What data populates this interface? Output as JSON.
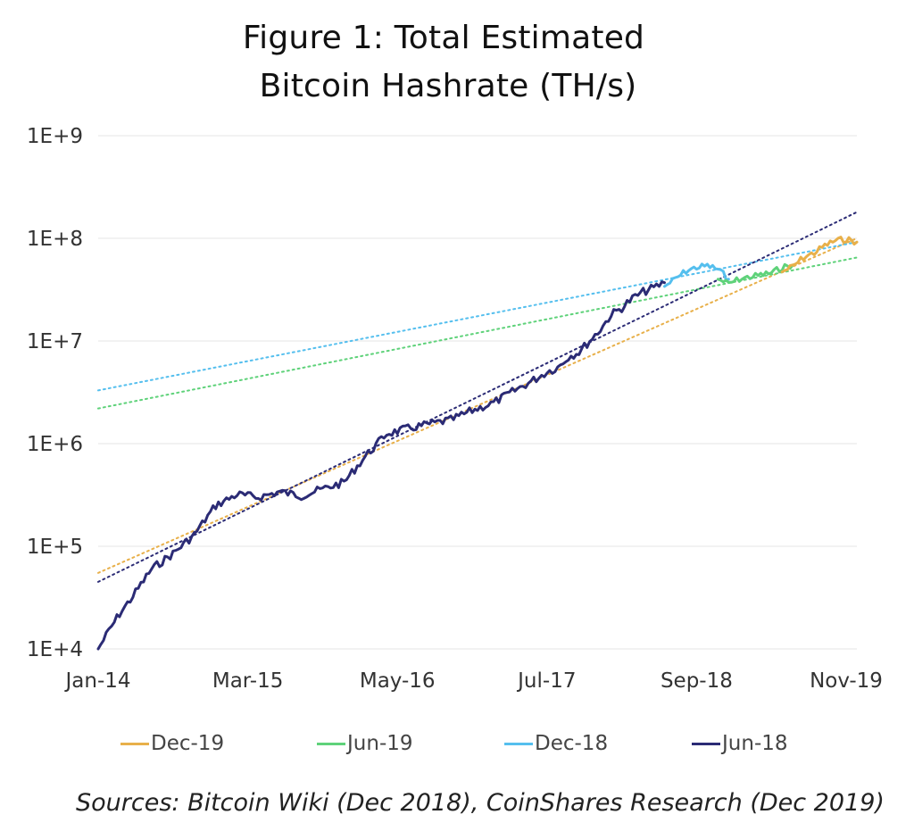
{
  "title": {
    "line1": "Figure 1: Total Estimated",
    "line2": "Bitcoin Hashrate (TH/s)"
  },
  "sources": "Sources: Bitcoin Wiki (Dec 2018), CoinShares Research (Dec 2019)",
  "chart_data": {
    "type": "line",
    "title": "Figure 1: Total Estimated Bitcoin Hashrate (TH/s)",
    "xlabel": "",
    "ylabel": "",
    "y_scale": "log",
    "ylim": [
      10000,
      1000000000
    ],
    "xlim": [
      "2014-01",
      "2019-12"
    ],
    "grid": true,
    "legend_position": "bottom",
    "y_ticks": [
      "1E+4",
      "1E+5",
      "1E+6",
      "1E+7",
      "1E+8",
      "1E+9"
    ],
    "y_tick_values": [
      10000,
      100000,
      1000000,
      10000000,
      100000000,
      1000000000
    ],
    "x_ticks": [
      "Jan-14",
      "Mar-15",
      "May-16",
      "Jul-17",
      "Sep-18",
      "Nov-19"
    ],
    "x_tick_dates": [
      "2014-01",
      "2015-03",
      "2016-05",
      "2017-07",
      "2018-09",
      "2019-11"
    ],
    "series": [
      {
        "name": "Dec-19",
        "color": "#e8b04a",
        "x": [
          "2019-05",
          "2019-06",
          "2019-07",
          "2019-08",
          "2019-09",
          "2019-10",
          "2019-11",
          "2019-12"
        ],
        "y": [
          47000000,
          53000000,
          65000000,
          72000000,
          85000000,
          95000000,
          98000000,
          92000000
        ]
      },
      {
        "name": "Jun-19",
        "color": "#5fd27a",
        "x": [
          "2018-11",
          "2018-12",
          "2019-01",
          "2019-02",
          "2019-03",
          "2019-04",
          "2019-05",
          "2019-06"
        ],
        "y": [
          40000000,
          36000000,
          40000000,
          42000000,
          44000000,
          46000000,
          52000000,
          55000000
        ]
      },
      {
        "name": "Dec-18",
        "color": "#55bfee",
        "x": [
          "2018-06",
          "2018-07",
          "2018-08",
          "2018-09",
          "2018-10",
          "2018-11",
          "2018-12"
        ],
        "y": [
          34000000,
          40000000,
          48000000,
          52000000,
          54000000,
          50000000,
          40000000
        ]
      },
      {
        "name": "Jun-18",
        "color": "#2b2b75",
        "x": [
          "2014-01",
          "2014-02",
          "2014-03",
          "2014-04",
          "2014-06",
          "2014-08",
          "2014-10",
          "2014-12",
          "2015-02",
          "2015-04",
          "2015-06",
          "2015-08",
          "2015-10",
          "2015-12",
          "2016-02",
          "2016-04",
          "2016-06",
          "2016-08",
          "2016-10",
          "2016-12",
          "2017-02",
          "2017-04",
          "2017-06",
          "2017-07",
          "2017-08",
          "2017-09",
          "2017-10",
          "2017-11",
          "2017-12",
          "2018-01",
          "2018-02",
          "2018-03",
          "2018-04",
          "2018-05",
          "2018-06"
        ],
        "y": [
          10000,
          15000,
          22000,
          30000,
          60000,
          85000,
          130000,
          250000,
          320000,
          300000,
          340000,
          310000,
          360000,
          420000,
          750000,
          1250000,
          1400000,
          1550000,
          1700000,
          2100000,
          2500000,
          3300000,
          4300000,
          5000000,
          5500000,
          7000000,
          7800000,
          10000000,
          13000000,
          18000000,
          21000000,
          26000000,
          30000000,
          33000000,
          37000000
        ]
      }
    ],
    "trendlines": [
      {
        "name": "Dec-19",
        "color": "#e8b04a",
        "x": [
          "2014-01",
          "2019-12"
        ],
        "y": [
          55000,
          100000000
        ]
      },
      {
        "name": "Jun-19",
        "color": "#5fd27a",
        "x": [
          "2014-01",
          "2019-12"
        ],
        "y": [
          2200000,
          65000000
        ]
      },
      {
        "name": "Dec-18",
        "color": "#55bfee",
        "x": [
          "2014-01",
          "2019-12"
        ],
        "y": [
          3300000,
          92000000
        ]
      },
      {
        "name": "Jun-18",
        "color": "#2b2b75",
        "x": [
          "2014-01",
          "2019-12"
        ],
        "y": [
          45000,
          180000000
        ]
      }
    ]
  }
}
